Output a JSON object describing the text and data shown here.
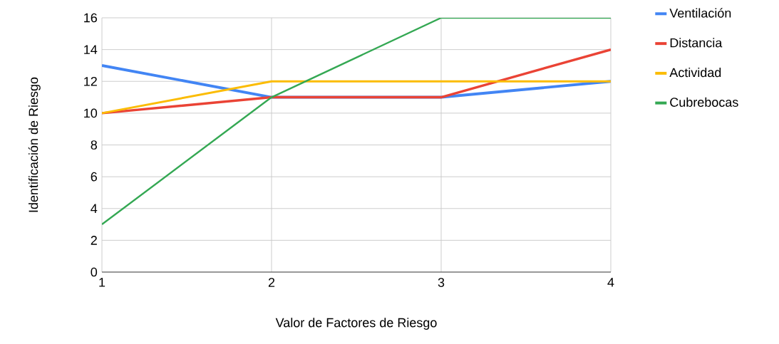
{
  "chart_data": {
    "type": "line",
    "xlabel": "Valor de Factores de Riesgo",
    "ylabel": "Identificación de Riesgo",
    "x": [
      1,
      2,
      3,
      4
    ],
    "xlim": [
      1,
      4
    ],
    "xticks": [
      1,
      2,
      3,
      4
    ],
    "ylim": [
      0,
      16
    ],
    "yticks": [
      0,
      2,
      4,
      6,
      8,
      10,
      12,
      14,
      16
    ],
    "grid": true,
    "legend": "right",
    "marker": "none",
    "series": [
      {
        "name": "Ventilación",
        "color": "#4285f4",
        "values": [
          13,
          11,
          11,
          12
        ]
      },
      {
        "name": "Distancia",
        "color": "#ea4335",
        "values": [
          10,
          11,
          11,
          14
        ]
      },
      {
        "name": "Actividad",
        "color": "#fbbc04",
        "values": [
          10,
          12,
          12,
          12
        ]
      },
      {
        "name": "Cubrebocas",
        "color": "#34a853",
        "values": [
          3,
          11,
          16,
          16
        ]
      }
    ]
  }
}
